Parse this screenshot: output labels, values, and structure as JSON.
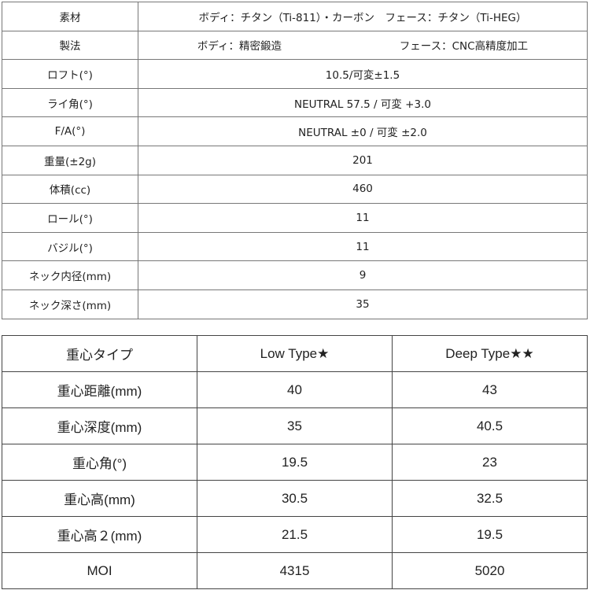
{
  "spec_table": {
    "material": {
      "label": "素材",
      "value": "ボディ：チタン（Ti-811）・カーボン　フェース：チタン（Ti-HEG）"
    },
    "method": {
      "label": "製法",
      "body": "ボディ：精密鍛造",
      "face": "フェース：CNC高精度加工"
    },
    "rows": [
      {
        "label": "ロフト(°)",
        "value": "10.5/可変±1.5"
      },
      {
        "label": "ライ角(°)",
        "value": "NEUTRAL 57.5 / 可変 +3.0"
      },
      {
        "label": "F/A(°)",
        "value": "NEUTRAL ±0 / 可変 ±2.0"
      },
      {
        "label": "重量(±2g)",
        "value": "201"
      },
      {
        "label": "体積(cc)",
        "value": "460"
      },
      {
        "label": "ロール(°)",
        "value": "11"
      },
      {
        "label": "バジル(°)",
        "value": "11"
      },
      {
        "label": "ネック内径(mm)",
        "value": "9"
      },
      {
        "label": "ネック深さ(mm)",
        "value": "35"
      }
    ]
  },
  "cg_table": {
    "header": [
      "重心タイプ",
      "Low Type★",
      "Deep Type★★"
    ],
    "rows": [
      [
        "重心距離(mm)",
        "40",
        "43"
      ],
      [
        "重心深度(mm)",
        "35",
        "40.5"
      ],
      [
        "重心角(°)",
        "19.5",
        "23"
      ],
      [
        "重心高(mm)",
        "30.5",
        "32.5"
      ],
      [
        "重心高２(mm)",
        "21.5",
        "19.5"
      ],
      [
        "MOI",
        "4315",
        "5020"
      ]
    ]
  }
}
